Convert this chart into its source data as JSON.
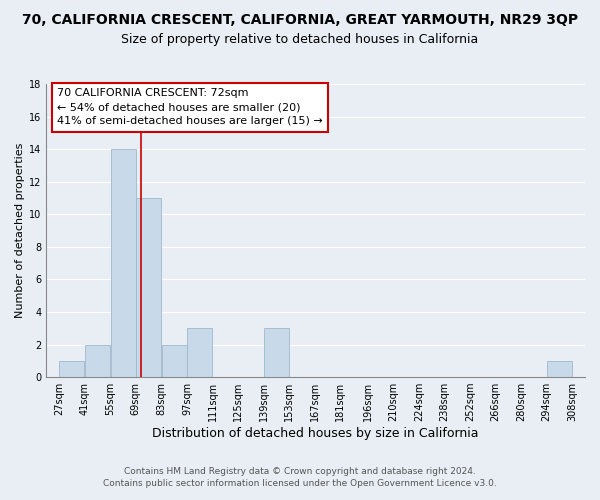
{
  "title": "70, CALIFORNIA CRESCENT, CALIFORNIA, GREAT YARMOUTH, NR29 3QP",
  "subtitle": "Size of property relative to detached houses in California",
  "xlabel": "Distribution of detached houses by size in California",
  "ylabel": "Number of detached properties",
  "bar_edges": [
    27,
    41,
    55,
    69,
    83,
    97,
    111,
    125,
    139,
    153,
    167,
    181,
    196,
    210,
    224,
    238,
    252,
    266,
    280,
    294,
    308
  ],
  "bar_heights": [
    1,
    2,
    14,
    11,
    2,
    3,
    0,
    0,
    3,
    0,
    0,
    0,
    0,
    0,
    0,
    0,
    0,
    0,
    0,
    1
  ],
  "bar_color": "#c8daea",
  "bar_edgecolor": "#c8daea",
  "vline_x": 72,
  "vline_color": "#cc0000",
  "ylim": [
    0,
    18
  ],
  "yticks": [
    0,
    2,
    4,
    6,
    8,
    10,
    12,
    14,
    16,
    18
  ],
  "xtick_labels": [
    "27sqm",
    "41sqm",
    "55sqm",
    "69sqm",
    "83sqm",
    "97sqm",
    "111sqm",
    "125sqm",
    "139sqm",
    "153sqm",
    "167sqm",
    "181sqm",
    "196sqm",
    "210sqm",
    "224sqm",
    "238sqm",
    "252sqm",
    "266sqm",
    "280sqm",
    "294sqm",
    "308sqm"
  ],
  "annotation_text": "70 CALIFORNIA CRESCENT: 72sqm\n← 54% of detached houses are smaller (20)\n41% of semi-detached houses are larger (15) →",
  "footer_text": "Contains HM Land Registry data © Crown copyright and database right 2024.\nContains public sector information licensed under the Open Government Licence v3.0.",
  "background_color": "#e8eef4",
  "grid_color": "#ffffff",
  "title_fontsize": 10,
  "subtitle_fontsize": 9,
  "xlabel_fontsize": 9,
  "ylabel_fontsize": 8,
  "tick_fontsize": 7,
  "annotation_fontsize": 8,
  "footer_fontsize": 6.5
}
